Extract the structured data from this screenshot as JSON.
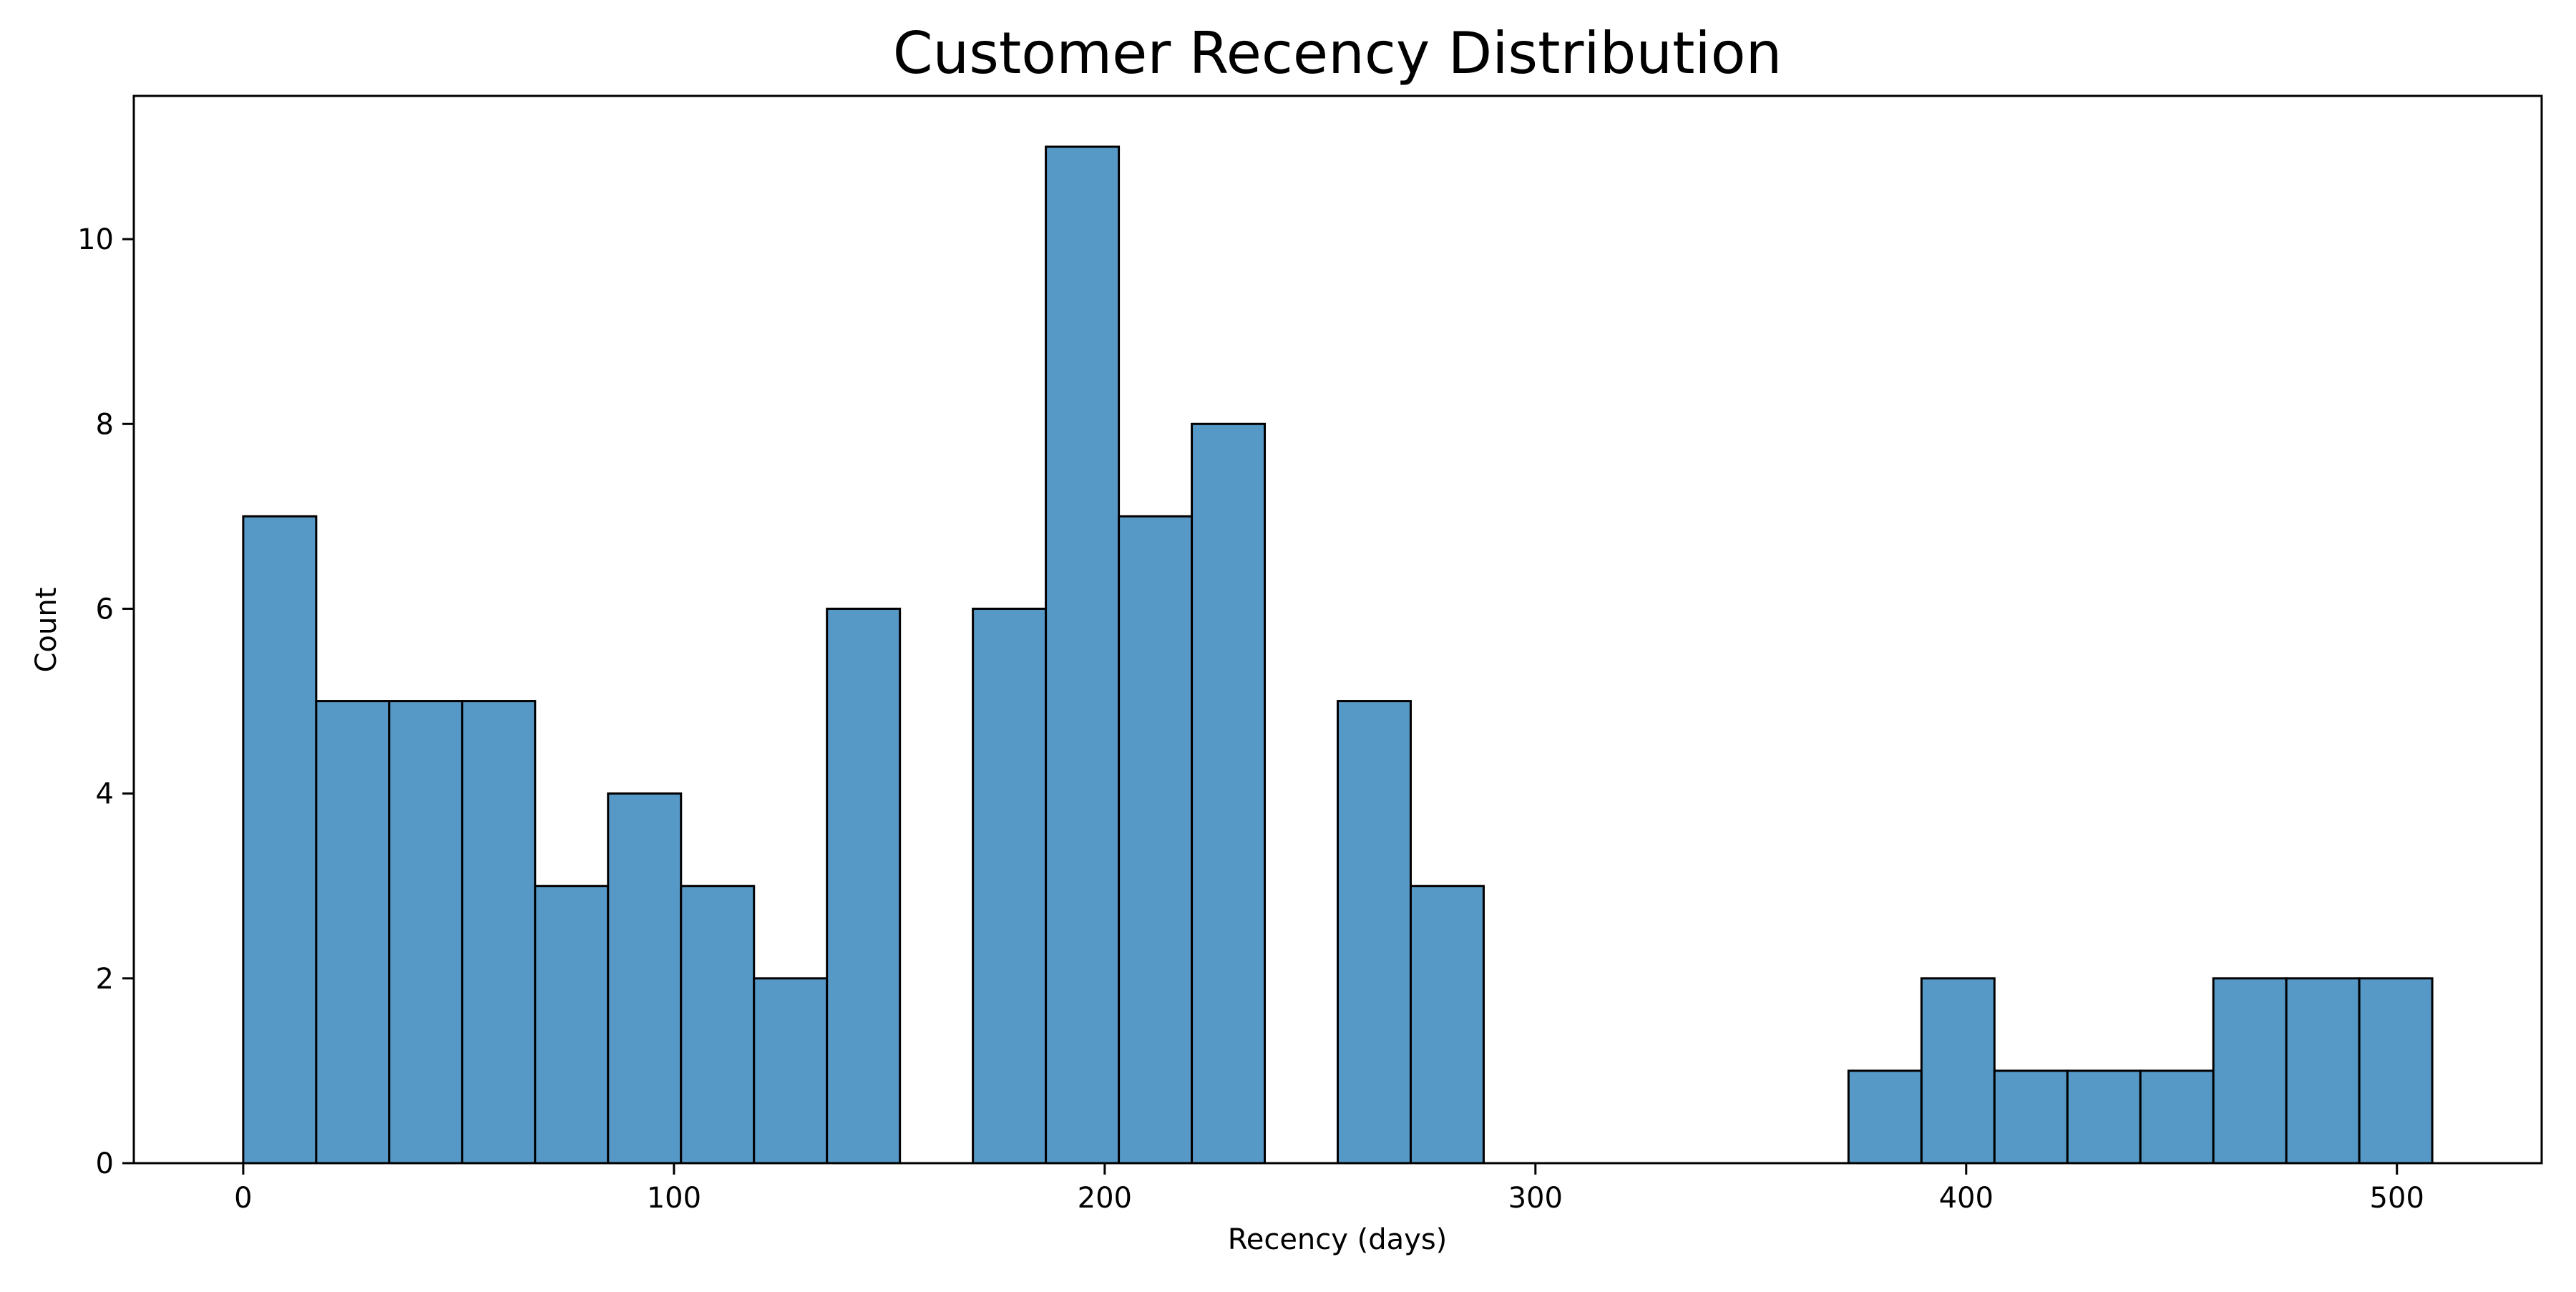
{
  "chart_data": {
    "type": "bar",
    "title": "Customer Recency Distribution",
    "xlabel": "Recency (days)",
    "ylabel": "Count",
    "bin_width": 16.94,
    "bins": [
      {
        "start": 0.0,
        "count": 7
      },
      {
        "start": 16.94,
        "count": 5
      },
      {
        "start": 33.88,
        "count": 5
      },
      {
        "start": 50.82,
        "count": 5
      },
      {
        "start": 67.76,
        "count": 3
      },
      {
        "start": 84.7,
        "count": 4
      },
      {
        "start": 101.64,
        "count": 3
      },
      {
        "start": 118.58,
        "count": 2
      },
      {
        "start": 135.52,
        "count": 6
      },
      {
        "start": 152.46,
        "count": 0
      },
      {
        "start": 169.4,
        "count": 6
      },
      {
        "start": 186.34,
        "count": 11
      },
      {
        "start": 203.28,
        "count": 7
      },
      {
        "start": 220.22,
        "count": 8
      },
      {
        "start": 237.16,
        "count": 0
      },
      {
        "start": 254.1,
        "count": 5
      },
      {
        "start": 271.04,
        "count": 3
      },
      {
        "start": 287.98,
        "count": 0
      },
      {
        "start": 304.92,
        "count": 0
      },
      {
        "start": 321.86,
        "count": 0
      },
      {
        "start": 338.8,
        "count": 0
      },
      {
        "start": 355.74,
        "count": 0
      },
      {
        "start": 372.68,
        "count": 1
      },
      {
        "start": 389.62,
        "count": 2
      },
      {
        "start": 406.56,
        "count": 1
      },
      {
        "start": 423.5,
        "count": 1
      },
      {
        "start": 440.44,
        "count": 1
      },
      {
        "start": 457.38,
        "count": 2
      },
      {
        "start": 474.32,
        "count": 2
      },
      {
        "start": 491.26,
        "count": 2
      }
    ],
    "xlim": [
      -25.4,
      533.6
    ],
    "ylim": [
      0,
      11.55
    ],
    "xticks": [
      0,
      100,
      200,
      300,
      400,
      500
    ],
    "yticks": [
      0,
      2,
      4,
      6,
      8,
      10
    ],
    "bar_color": "#5799c6",
    "edge_color": "#000000",
    "grid": false,
    "legend": "none"
  }
}
